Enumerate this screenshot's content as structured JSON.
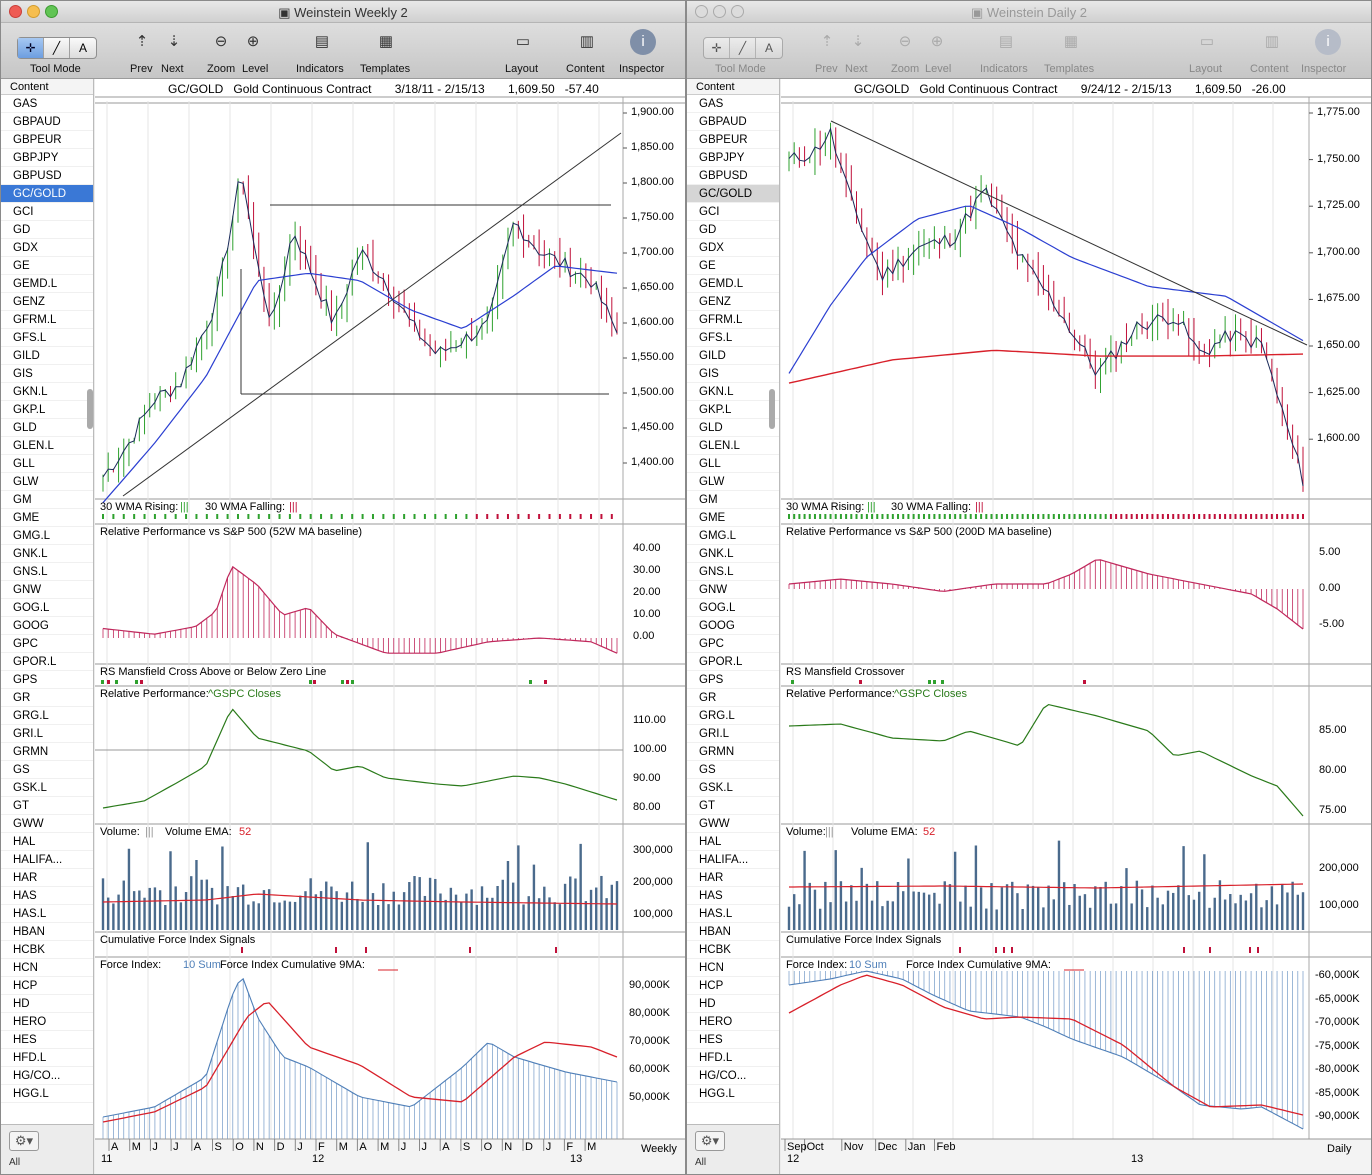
{
  "windows": [
    {
      "title": "Weinstein Weekly 2",
      "toolbar": {
        "tool_mode": "Tool Mode",
        "prev": "Prev",
        "next": "Next",
        "zoom": "Zoom",
        "level": "Level",
        "indicators": "Indicators",
        "templates": "Templates",
        "layout": "Layout",
        "content": "Content",
        "inspector": "Inspector",
        "seg_text": "A"
      },
      "sidebar_header": "Content",
      "header": {
        "symbol": "GC/GOLD",
        "name": "Gold Continuous Contract",
        "range": "3/18/11 - 2/15/13",
        "last": "1,609.50",
        "change": "-57.40"
      },
      "price_ticks": [
        "1,900.00",
        "1,850.00",
        "1,800.00",
        "1,750.00",
        "1,700.00",
        "1,650.00",
        "1,600.00",
        "1,550.00",
        "1,500.00",
        "1,450.00",
        "1,400.00"
      ],
      "panels": {
        "wma": {
          "label": "30 WMA Rising:",
          "label2": "30 WMA Falling:",
          "glyph": "|||"
        },
        "rp500": {
          "label": "Relative Performance vs S&P 500 (52W MA baseline)",
          "ticks": [
            "40.00",
            "30.00",
            "20.00",
            "10.00",
            "0.00"
          ]
        },
        "rsm": {
          "label": "RS Mansfield Cross Above or Below Zero Line"
        },
        "rp": {
          "label": "Relative Performance:",
          "label2": "^GSPC Closes",
          "ticks": [
            "110.00",
            "100.00",
            "90.00",
            "80.00"
          ]
        },
        "vol": {
          "label": "Volume:",
          "glyph": "|||",
          "label2": "Volume EMA:",
          "ema": "52",
          "ticks": [
            "300,000",
            "200,000",
            "100,000"
          ]
        },
        "cfi": {
          "label": "Cumulative Force Index Signals"
        },
        "fi": {
          "label": "Force Index:",
          "sum": "10 Sum",
          "label2": "Force Index Cumulative 9MA:",
          "ticks": [
            "90,000K",
            "80,000K",
            "70,000K",
            "60,000K",
            "50,000K"
          ]
        }
      },
      "x_axis": [
        "A",
        "M",
        "J",
        "J",
        "A",
        "S",
        "O",
        "N",
        "D",
        "J",
        "F",
        "M",
        "A",
        "M",
        "J",
        "J",
        "A",
        "S",
        "O",
        "N",
        "D",
        "J",
        "F",
        "M"
      ],
      "years": [
        "11",
        "12",
        "13"
      ],
      "period": "Weekly",
      "footer": "All"
    },
    {
      "title": "Weinstein Daily 2",
      "toolbar": {
        "tool_mode": "Tool Mode",
        "prev": "Prev",
        "next": "Next",
        "zoom": "Zoom",
        "level": "Level",
        "indicators": "Indicators",
        "templates": "Templates",
        "layout": "Layout",
        "content": "Content",
        "inspector": "Inspector",
        "seg_text": "A"
      },
      "sidebar_header": "Content",
      "header": {
        "symbol": "GC/GOLD",
        "name": "Gold Continuous Contract",
        "range": "9/24/12 - 2/15/13",
        "last": "1,609.50",
        "change": "-26.00"
      },
      "price_ticks": [
        "1,775.00",
        "1,750.00",
        "1,725.00",
        "1,700.00",
        "1,675.00",
        "1,650.00",
        "1,625.00",
        "1,600.00"
      ],
      "panels": {
        "wma": {
          "label": "30 WMA Rising:",
          "label2": "30 WMA Falling:",
          "glyph": "|||"
        },
        "rp500": {
          "label": "Relative Performance vs S&P 500 (200D MA baseline)",
          "ticks": [
            "5.00",
            "0.00",
            "-5.00"
          ]
        },
        "rsm": {
          "label": "RS Mansfield Crossover"
        },
        "rp": {
          "label": "Relative Performance:",
          "label2": "^GSPC Closes",
          "ticks": [
            "85.00",
            "80.00",
            "75.00"
          ]
        },
        "vol": {
          "label": "Volume:",
          "glyph": "|||",
          "label2": "Volume EMA:",
          "ema": "52",
          "ticks": [
            "200,000",
            "100,000"
          ]
        },
        "cfi": {
          "label": "Cumulative Force Index Signals"
        },
        "fi": {
          "label": "Force Index:",
          "sum": "10 Sum",
          "label2": "Force Index Cumulative 9MA:",
          "ticks": [
            "-60,000K",
            "-65,000K",
            "-70,000K",
            "-75,000K",
            "-80,000K",
            "-85,000K",
            "-90,000K"
          ]
        }
      },
      "x_axis": [
        "Sep",
        "Oct",
        "Nov",
        "Dec",
        "Jan",
        "Feb"
      ],
      "years": [
        "12",
        "13"
      ],
      "period": "Daily",
      "footer": "All"
    }
  ],
  "sidebar_items": [
    "GAS",
    "GBPAUD",
    "GBPEUR",
    "GBPJPY",
    "GBPUSD",
    "GC/GOLD",
    "GCI",
    "GD",
    "GDX",
    "GE",
    "GEMD.L",
    "GENZ",
    "GFRM.L",
    "GFS.L",
    "GILD",
    "GIS",
    "GKN.L",
    "GKP.L",
    "GLD",
    "GLEN.L",
    "GLL",
    "GLW",
    "GM",
    "GME",
    "GMG.L",
    "GNK.L",
    "GNS.L",
    "GNW",
    "GOG.L",
    "GOOG",
    "GPC",
    "GPOR.L",
    "GPS",
    "GR",
    "GRG.L",
    "GRI.L",
    "GRMN",
    "GS",
    "GSK.L",
    "GT",
    "GWW",
    "HAL",
    "HALIFA...",
    "HAR",
    "HAS",
    "HAS.L",
    "HBAN",
    "HCBK",
    "HCN",
    "HCP",
    "HD",
    "HERO",
    "HES",
    "HFD.L",
    "HG/CO...",
    "HGG.L"
  ],
  "selected_item": "GC/GOLD",
  "colors": {
    "accent": "#3a78d6",
    "price_up": "#2ea12e",
    "price_down": "#c0103a",
    "ma_blue": "#2b3fd1",
    "ma_red": "#d8202a",
    "rp_green": "#2a7a1a",
    "rs_pink": "#c0285c",
    "volume": "#4a6a8c",
    "fi_blue": "#4f7fb8"
  }
}
